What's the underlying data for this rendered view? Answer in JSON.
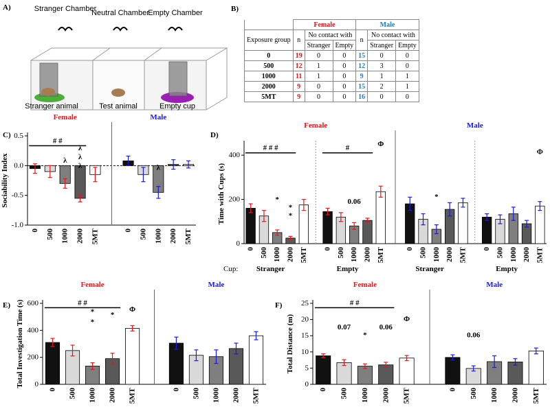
{
  "diagram": {
    "panel": "A)",
    "chambers": [
      "Stranger Chamber",
      "Neutral Chamber",
      "Empty Chamber"
    ],
    "items": [
      "Stranger animal",
      "Test animal",
      "Empty cup"
    ]
  },
  "table": {
    "panel": "B)",
    "header": {
      "female": "Female",
      "male": "Male",
      "group": "Exposure group",
      "n": "n",
      "no_contact": "No contact with",
      "stranger": "Stranger",
      "empty": "Empty"
    },
    "rows": [
      [
        "0",
        "19",
        "0",
        "0",
        "15",
        "0",
        "0"
      ],
      [
        "500",
        "12",
        "1",
        "0",
        "12",
        "3",
        "0"
      ],
      [
        "1000",
        "11",
        "1",
        "0",
        "9",
        "1",
        "1"
      ],
      [
        "2000",
        "9",
        "0",
        "0",
        "15",
        "2",
        "1"
      ],
      [
        "5MT",
        "9",
        "0",
        "0",
        "16",
        "0",
        "0"
      ]
    ]
  },
  "chart_data": [
    {
      "type": "bar",
      "panel": "C)",
      "ylabel": "Sociability Index",
      "ylim": [
        -1,
        0.5
      ],
      "yticks": [
        {
          "value": -1,
          "label": "-1.0"
        },
        {
          "value": -0.5,
          "label": "-0.5"
        },
        {
          "value": 0,
          "label": "0.0"
        },
        {
          "value": 0.5,
          "label": "0.5"
        }
      ],
      "zero_line": true,
      "bar_colors": [
        "#111111",
        "#d9d9d9",
        "#7f7f7f",
        "#595959",
        "#ffffff"
      ],
      "sections": [
        {
          "title": "Female",
          "color": "#e8141b",
          "groups": [
            {
              "categories": [
                "0",
                "500",
                "1000",
                "2000",
                "5MT"
              ],
              "values": [
                -0.05,
                -0.1,
                -0.3,
                -0.55,
                -0.15
              ],
              "errors": [
                0.08,
                0.1,
                0.08,
                0.06,
                0.12
              ]
            }
          ]
        },
        {
          "title": "Male",
          "color": "#1a1adb",
          "groups": [
            {
              "categories": [
                "0",
                "500",
                "1000",
                "2000",
                "5MT"
              ],
              "values": [
                0.08,
                -0.15,
                -0.45,
                0.02,
                0.02
              ],
              "errors": [
                0.08,
                0.12,
                0.1,
                0.08,
                0.06
              ]
            }
          ]
        }
      ],
      "annotations": [
        "# #",
        "λ",
        "λ",
        "λ",
        "λ",
        "λ"
      ]
    },
    {
      "type": "bar",
      "panel": "D)",
      "ylabel": "Time with Cups (s)",
      "ylim": [
        0,
        450
      ],
      "yticks": [
        0,
        200,
        400
      ],
      "x_group_title": "Cup:",
      "bar_colors": [
        "#111111",
        "#d9d9d9",
        "#7f7f7f",
        "#595959",
        "#ffffff"
      ],
      "sections": [
        {
          "title": "Female",
          "color": "#e8141b",
          "groups": [
            {
              "label": "Stranger",
              "categories": [
                "0",
                "500",
                "1000",
                "2000",
                "5MT"
              ],
              "values": [
                160,
                125,
                50,
                25,
                175
              ],
              "errors": [
                20,
                25,
                12,
                8,
                25
              ]
            },
            {
              "label": "Empty",
              "categories": [
                "0",
                "500",
                "1000",
                "2000",
                "5MT"
              ],
              "values": [
                145,
                120,
                80,
                105,
                235
              ],
              "errors": [
                15,
                20,
                15,
                10,
                25
              ]
            }
          ]
        },
        {
          "title": "Male",
          "color": "#1a1adb",
          "groups": [
            {
              "label": "Stranger",
              "categories": [
                "0",
                "500",
                "1000",
                "2000",
                "5MT"
              ],
              "values": [
                180,
                110,
                65,
                155,
                185
              ],
              "errors": [
                30,
                25,
                20,
                30,
                20
              ]
            },
            {
              "label": "Empty",
              "categories": [
                "0",
                "500",
                "1000",
                "2000",
                "5MT"
              ],
              "values": [
                120,
                110,
                135,
                90,
                170
              ],
              "errors": [
                15,
                20,
                30,
                15,
                20
              ]
            }
          ]
        }
      ],
      "annotations": [
        "# # #",
        "#",
        "Φ",
        "*",
        "*",
        "*",
        "0.06",
        "*",
        "Φ"
      ]
    },
    {
      "type": "bar",
      "panel": "E)",
      "ylabel": "Total Investigation Time (s)",
      "ylim": [
        0,
        600
      ],
      "yticks": [
        0,
        200,
        400,
        600
      ],
      "bar_colors": [
        "#111111",
        "#d9d9d9",
        "#7f7f7f",
        "#595959",
        "#ffffff"
      ],
      "sections": [
        {
          "title": "Female",
          "color": "#e8141b",
          "groups": [
            {
              "categories": [
                "0",
                "500",
                "1000",
                "2000",
                "5MT"
              ],
              "values": [
                310,
                250,
                135,
                190,
                415
              ],
              "errors": [
                30,
                40,
                25,
                40,
                20
              ]
            }
          ]
        },
        {
          "title": "Male",
          "color": "#1a1adb",
          "groups": [
            {
              "categories": [
                "0",
                "500",
                "1000",
                "2000",
                "5MT"
              ],
              "values": [
                305,
                215,
                205,
                265,
                360
              ],
              "errors": [
                45,
                40,
                50,
                40,
                30
              ]
            }
          ]
        }
      ],
      "annotations": [
        "# #",
        "*",
        "*",
        "*",
        "Φ"
      ]
    },
    {
      "type": "bar",
      "panel": "F)",
      "ylabel": "Total Distance (m)",
      "ylim": [
        0,
        25
      ],
      "yticks": [
        0,
        5,
        10,
        15,
        20,
        25
      ],
      "bar_colors": [
        "#111111",
        "#d9d9d9",
        "#7f7f7f",
        "#595959",
        "#ffffff"
      ],
      "sections": [
        {
          "title": "Female",
          "color": "#e8141b",
          "groups": [
            {
              "categories": [
                "0",
                "500",
                "1000",
                "2000",
                "5MT"
              ],
              "values": [
                8.8,
                6.7,
                5.6,
                6.0,
                8.1
              ],
              "errors": [
                0.6,
                0.9,
                0.7,
                0.8,
                0.8
              ]
            }
          ]
        },
        {
          "title": "Male",
          "color": "#1a1adb",
          "groups": [
            {
              "categories": [
                "0",
                "500",
                "1000",
                "2000",
                "5MT"
              ],
              "values": [
                8.3,
                4.9,
                7.0,
                6.9,
                10.3
              ],
              "errors": [
                0.8,
                0.8,
                1.8,
                1.0,
                0.9
              ]
            }
          ]
        }
      ],
      "annotations": [
        "# #",
        "0.07",
        "*",
        "0.06",
        "Φ",
        "0.06"
      ]
    }
  ]
}
